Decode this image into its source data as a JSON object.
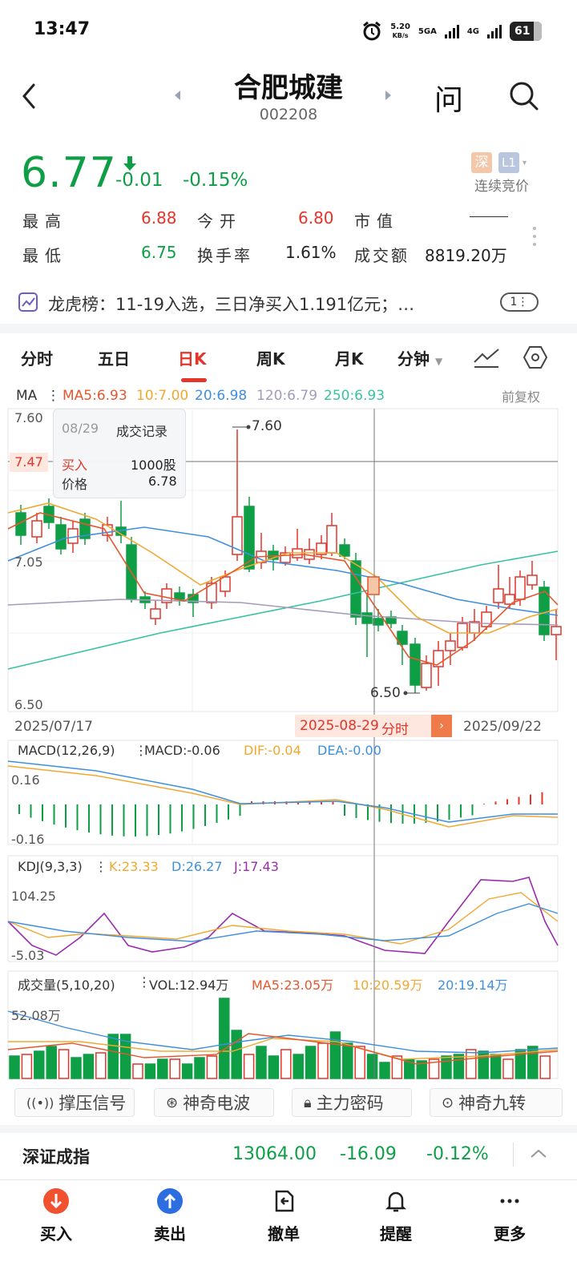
{
  "status_bar": {
    "time": "13:47",
    "net_speed": "5.20",
    "net_unit": "KB/s",
    "sig1": "5GA",
    "sig2": "4G",
    "battery": "61"
  },
  "header": {
    "stock_name": "合肥城建",
    "stock_code": "002208",
    "ask_label": "问"
  },
  "quote": {
    "price": "6.77",
    "change": "-0.01",
    "change_pct": "-0.15%",
    "badge_exchange": "深",
    "badge_level": "L1",
    "auction_label": "连续竞价",
    "stats": {
      "high_label": "最高",
      "high_value": "6.88",
      "open_label": "今开",
      "open_value": "6.80",
      "mcap_label": "市值",
      "mcap_value": "——",
      "low_label": "最低",
      "low_value": "6.75",
      "turnover_label": "换手率",
      "turnover_value": "1.61%",
      "amount_label": "成交额",
      "amount_value": "8819.20万"
    }
  },
  "dragon_tiger": {
    "text": "龙虎榜：11-19入选，三日净买入1.191亿元；…",
    "badge": "1⋮"
  },
  "tabs": [
    {
      "label": "分时"
    },
    {
      "label": "五日"
    },
    {
      "label": "日K"
    },
    {
      "label": "周K"
    },
    {
      "label": "月K"
    },
    {
      "label": "分钟"
    }
  ],
  "ma": {
    "label": "MA",
    "ma5": "MA5:6.93",
    "ma10": "10:7.00",
    "ma20": "20:6.98",
    "ma120": "120:6.79",
    "ma250": "250:6.93",
    "adjust": "前复权"
  },
  "kline": {
    "y_top": "7.60",
    "y_mid": "7.05",
    "y_bottom": "6.50",
    "crosshair_price": "7.47",
    "high_mark": "7.60",
    "low_mark": "6.50",
    "date_start": "2025/07/17",
    "date_end": "2025/09/22",
    "crosshair_date": "2025-08-29",
    "crosshair_action": "分时"
  },
  "tooltip": {
    "date": "08/29",
    "title": "成交记录",
    "action_label": "买入",
    "action_value": "1000股",
    "price_label": "价格",
    "price_value": "6.78"
  },
  "macd": {
    "title": "MACD(12,26,9)",
    "macd": "MACD:-0.06",
    "dif": "DIF:-0.04",
    "dea": "DEA:-0.00",
    "y_top": "0.16",
    "y_bottom": "-0.16"
  },
  "kdj": {
    "title": "KDJ(9,3,3)",
    "k": "K:23.33",
    "d": "D:26.27",
    "j": "J:17.43",
    "y_top": "104.25",
    "y_bottom": "-5.03"
  },
  "volume": {
    "title": "成交量(5,10,20)",
    "vol": "VOL:12.94万",
    "ma5": "MA5:23.05万",
    "ma10": "10:20.59万",
    "ma20": "20:19.14万",
    "y_top": "52.08万"
  },
  "features": [
    "撑压信号",
    "神奇电波",
    "主力密码",
    "神奇九转"
  ],
  "index": {
    "name": "深证成指",
    "value": "13064.00",
    "change": "-16.09",
    "pct": "-0.12%"
  },
  "bottom_nav": [
    {
      "label": "买入"
    },
    {
      "label": "卖出"
    },
    {
      "label": "撤单"
    },
    {
      "label": "提醒"
    },
    {
      "label": "更多"
    }
  ],
  "colors": {
    "up": "#e4352a",
    "down": "#0e9f46",
    "ma5": "#e4572e",
    "ma10": "#f0a830",
    "ma20": "#3f8fde",
    "ma120": "#a49bb8",
    "ma250": "#37c3a0",
    "kdj_j": "#9b2bb0"
  }
}
